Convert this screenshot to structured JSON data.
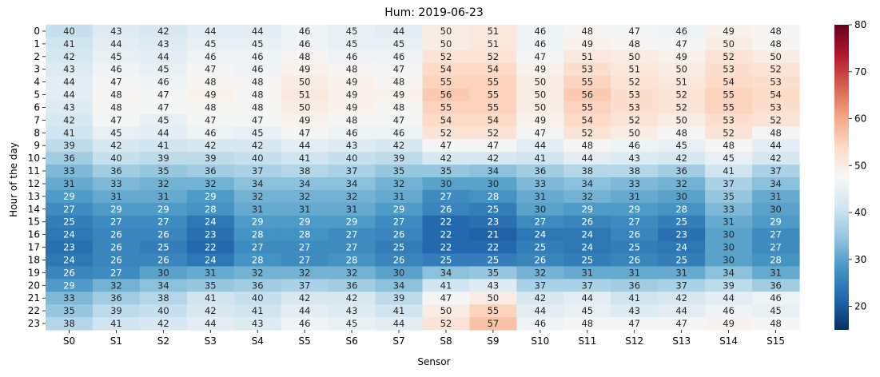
{
  "chart_data": {
    "type": "heatmap",
    "title": "Hum: 2019-06-23",
    "xlabel": "Sensor",
    "ylabel": "Hour of the day",
    "x": [
      "S0",
      "S1",
      "S2",
      "S3",
      "S4",
      "S5",
      "S6",
      "S7",
      "S8",
      "S9",
      "S10",
      "S11",
      "S12",
      "S13",
      "S14",
      "S15"
    ],
    "y": [
      "0",
      "1",
      "2",
      "3",
      "4",
      "5",
      "6",
      "7",
      "8",
      "9",
      "10",
      "11",
      "12",
      "13",
      "14",
      "15",
      "16",
      "17",
      "18",
      "19",
      "20",
      "21",
      "22",
      "23"
    ],
    "values": [
      [
        40,
        43,
        42,
        44,
        44,
        46,
        45,
        44,
        50,
        51,
        46,
        48,
        47,
        46,
        49,
        48
      ],
      [
        41,
        44,
        43,
        45,
        45,
        46,
        45,
        45,
        50,
        51,
        46,
        49,
        48,
        47,
        50,
        48
      ],
      [
        42,
        45,
        44,
        46,
        46,
        48,
        46,
        46,
        52,
        52,
        47,
        51,
        50,
        49,
        52,
        50
      ],
      [
        43,
        46,
        45,
        47,
        46,
        49,
        48,
        47,
        54,
        54,
        49,
        53,
        51,
        50,
        53,
        52
      ],
      [
        44,
        47,
        46,
        48,
        48,
        50,
        49,
        48,
        55,
        55,
        50,
        55,
        52,
        51,
        54,
        53
      ],
      [
        44,
        48,
        47,
        49,
        48,
        51,
        49,
        49,
        56,
        55,
        50,
        56,
        53,
        52,
        55,
        54
      ],
      [
        43,
        48,
        47,
        48,
        48,
        50,
        49,
        48,
        55,
        55,
        50,
        55,
        53,
        52,
        55,
        53
      ],
      [
        42,
        47,
        45,
        47,
        47,
        49,
        48,
        47,
        54,
        54,
        49,
        54,
        52,
        50,
        53,
        52
      ],
      [
        41,
        45,
        44,
        46,
        45,
        47,
        46,
        46,
        52,
        52,
        47,
        52,
        50,
        48,
        52,
        48
      ],
      [
        39,
        42,
        41,
        42,
        42,
        44,
        43,
        42,
        47,
        47,
        44,
        48,
        46,
        45,
        48,
        44
      ],
      [
        36,
        40,
        39,
        39,
        40,
        41,
        40,
        39,
        42,
        42,
        41,
        44,
        43,
        42,
        45,
        42
      ],
      [
        33,
        36,
        35,
        36,
        37,
        38,
        37,
        35,
        35,
        34,
        36,
        38,
        38,
        36,
        41,
        37
      ],
      [
        31,
        33,
        32,
        32,
        34,
        34,
        34,
        32,
        30,
        30,
        33,
        34,
        33,
        32,
        37,
        34
      ],
      [
        29,
        31,
        31,
        29,
        32,
        32,
        32,
        31,
        27,
        28,
        31,
        32,
        31,
        30,
        35,
        31
      ],
      [
        27,
        29,
        29,
        28,
        31,
        31,
        31,
        29,
        26,
        25,
        30,
        29,
        29,
        28,
        33,
        30
      ],
      [
        25,
        27,
        27,
        24,
        29,
        29,
        29,
        27,
        22,
        23,
        27,
        26,
        27,
        25,
        31,
        29
      ],
      [
        24,
        26,
        26,
        23,
        28,
        28,
        27,
        26,
        22,
        21,
        24,
        24,
        26,
        23,
        30,
        27
      ],
      [
        23,
        26,
        25,
        22,
        27,
        27,
        27,
        25,
        22,
        22,
        25,
        24,
        25,
        24,
        30,
        27
      ],
      [
        24,
        26,
        26,
        24,
        28,
        27,
        28,
        26,
        25,
        25,
        26,
        25,
        26,
        25,
        30,
        28
      ],
      [
        26,
        27,
        30,
        31,
        32,
        32,
        32,
        30,
        34,
        35,
        32,
        31,
        31,
        31,
        34,
        31
      ],
      [
        29,
        32,
        34,
        35,
        36,
        37,
        36,
        34,
        41,
        43,
        37,
        37,
        36,
        37,
        39,
        36
      ],
      [
        33,
        36,
        38,
        41,
        40,
        42,
        42,
        39,
        47,
        50,
        42,
        44,
        41,
        42,
        44,
        46
      ],
      [
        35,
        39,
        40,
        42,
        41,
        44,
        43,
        41,
        50,
        55,
        44,
        45,
        43,
        44,
        46,
        45
      ],
      [
        38,
        41,
        42,
        44,
        43,
        46,
        45,
        44,
        52,
        57,
        46,
        48,
        47,
        47,
        49,
        48
      ]
    ],
    "vmin": 15,
    "vmax": 80,
    "colormap": "RdBu_r",
    "colorbar_ticks": [
      20,
      30,
      40,
      50,
      60,
      70,
      80
    ]
  }
}
